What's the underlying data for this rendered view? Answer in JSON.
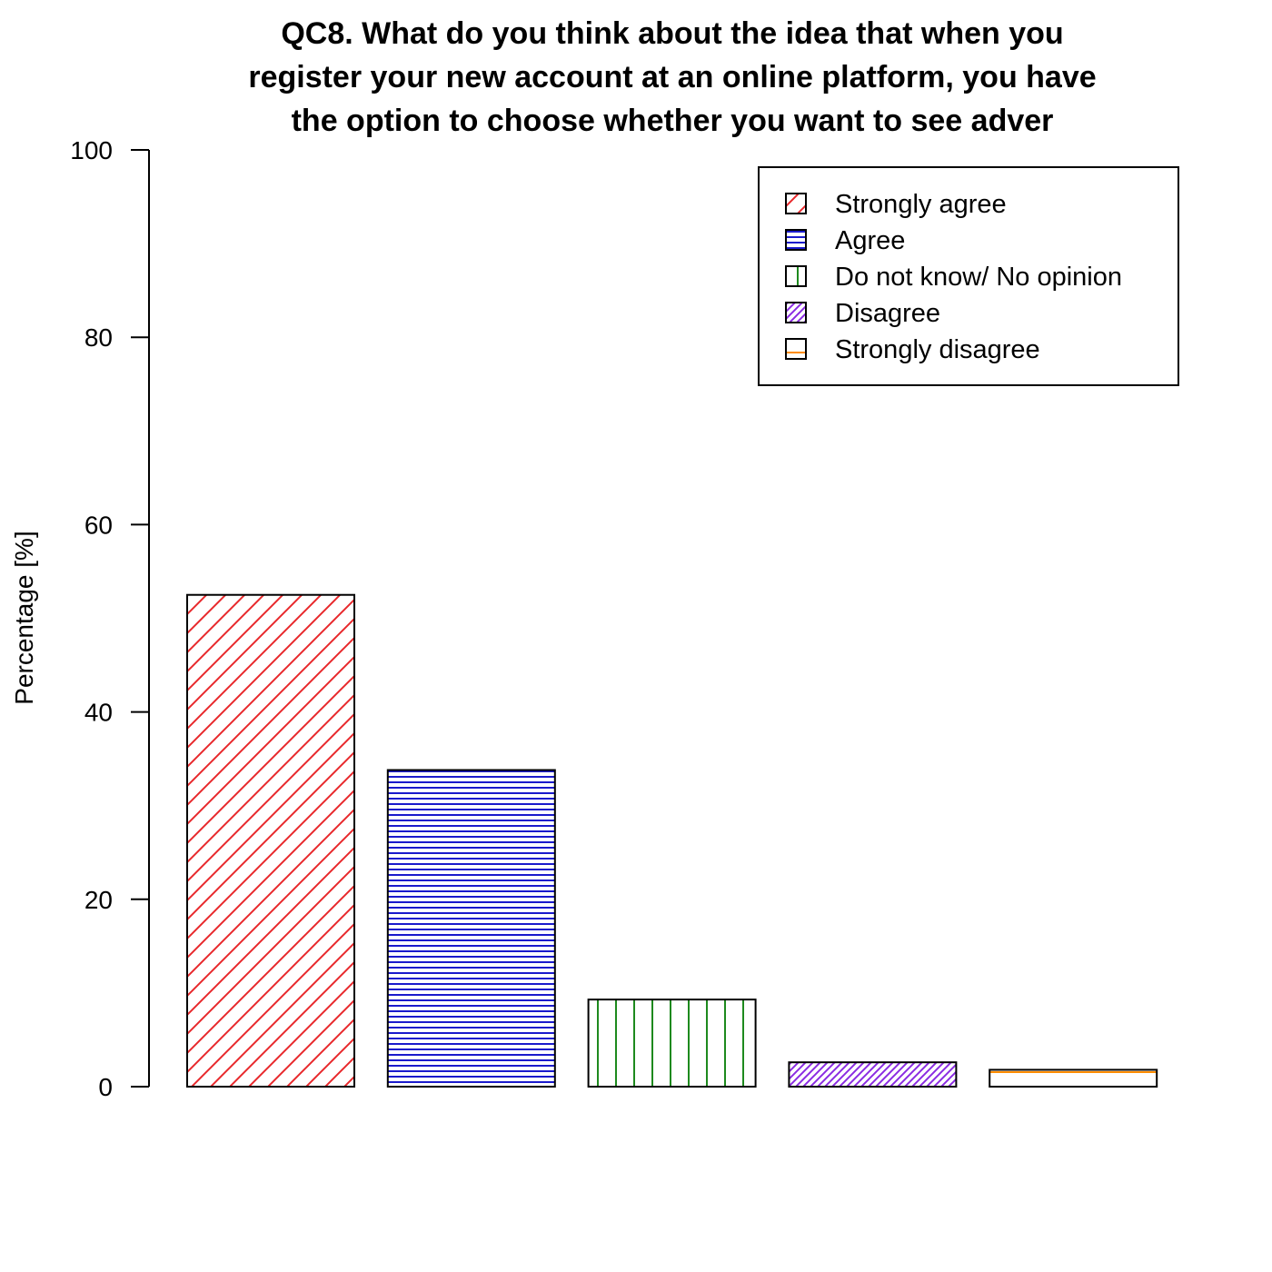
{
  "chart_data": {
    "type": "bar",
    "title_lines": [
      "QC8. What do you think about the idea that when you",
      "register your new account at an online platform, you have",
      "the option to choose whether you want to see adver"
    ],
    "ylabel": "Percentage [%]",
    "xlabel": "",
    "ylim": [
      0,
      100
    ],
    "yticks": [
      "0",
      "20",
      "40",
      "60",
      "80",
      "100"
    ],
    "categories": [
      "Strongly agree",
      "Agree",
      "Do not know/ No opinion",
      "Disagree",
      "Strongly disagree"
    ],
    "values": [
      52.5,
      33.8,
      9.3,
      2.6,
      1.8
    ],
    "colors": [
      "#e8282b",
      "#1a1acc",
      "#1e8a1e",
      "#8a2be2",
      "#ff8c00"
    ],
    "patterns": [
      "diagonal",
      "horizontal",
      "vertical",
      "diagonal-dense",
      "horizontal-sparse"
    ],
    "legend_position": "top-right",
    "grid": false
  }
}
